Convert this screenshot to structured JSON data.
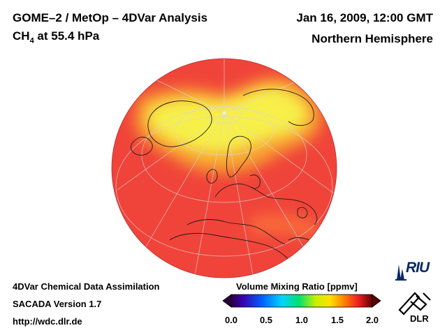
{
  "header": {
    "title_line1": "GOME–2 / MetOp – 4DVar Analysis",
    "species": "CH",
    "species_sub": "4",
    "level": " at 55.4 hPa",
    "datetime": "Jan 16, 2009, 12:00 GMT",
    "region": "Northern Hemisphere"
  },
  "footer": {
    "line1": "4DVar Chemical Data Assimilation",
    "line2": "SACADA Version 1.7",
    "line3": "http://wdc.dlr.de"
  },
  "colorbar": {
    "title": "Volume Mixing Ratio [ppmv]",
    "ticks": [
      "0.0",
      "0.5",
      "1.0",
      "1.5",
      "2.0"
    ],
    "range": [
      0.0,
      2.0
    ]
  },
  "logos": {
    "riu": "RIU",
    "dlr": "DLR"
  },
  "colors": {
    "field_high": "#f7f04a",
    "field_mid": "#f8a232",
    "field_low": "#f0443a",
    "coastline": "#1a1a1a",
    "graticule": "#d8d8d8"
  }
}
